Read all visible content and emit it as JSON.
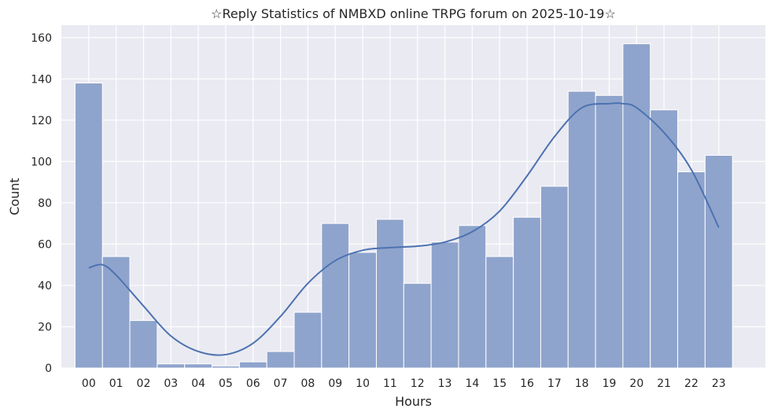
{
  "chart_data": {
    "type": "bar",
    "title": "☆Reply Statistics of NMBXD online TRPG forum on 2025-10-19☆",
    "xlabel": "Hours",
    "ylabel": "Count",
    "categories": [
      "00",
      "01",
      "02",
      "03",
      "04",
      "05",
      "06",
      "07",
      "08",
      "09",
      "10",
      "11",
      "12",
      "13",
      "14",
      "15",
      "16",
      "17",
      "18",
      "19",
      "20",
      "21",
      "22",
      "23"
    ],
    "values": [
      138,
      54,
      23,
      2,
      2,
      1,
      3,
      8,
      27,
      70,
      56,
      72,
      41,
      61,
      69,
      54,
      73,
      88,
      134,
      132,
      157,
      125,
      95,
      103
    ],
    "ylim": [
      0,
      166
    ],
    "yticks": [
      0,
      20,
      40,
      60,
      80,
      100,
      120,
      140,
      160
    ],
    "kde": {
      "x": [
        0,
        0.5,
        1,
        2,
        3,
        4,
        5,
        6,
        7,
        8,
        9,
        10,
        11,
        12,
        13,
        14,
        15,
        16,
        17,
        18,
        19,
        19.5,
        20,
        21,
        22,
        23
      ],
      "y": [
        48.5,
        50,
        45,
        30,
        15.5,
        8,
        6.5,
        12,
        25,
        41,
        52,
        57,
        58.3,
        59,
        61,
        66,
        76,
        93,
        112,
        126,
        128,
        128,
        126,
        114,
        96,
        68
      ]
    },
    "colors": {
      "bar": "#8fa4cc",
      "bar_edge": "#ffffff",
      "line": "#4c72b0",
      "plot_bg": "#eaeaf2",
      "grid": "#ffffff"
    },
    "grid": true,
    "legend": "none"
  }
}
